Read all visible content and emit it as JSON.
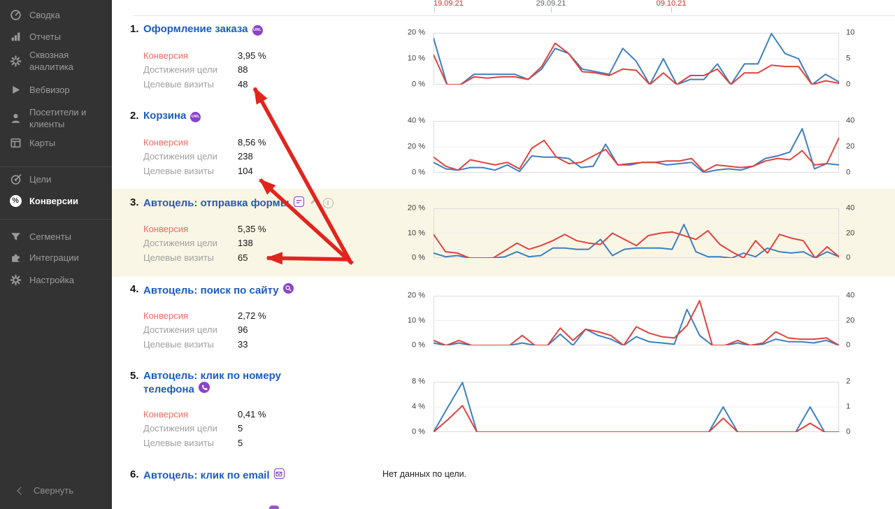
{
  "sidebar": {
    "items": [
      {
        "label": "Сводка",
        "icon": "gauge"
      },
      {
        "label": "Отчеты",
        "icon": "bar-chart"
      },
      {
        "label": "Сквозная аналитика",
        "icon": "burst"
      },
      {
        "label": "Вебвизор",
        "icon": "play"
      },
      {
        "label": "Посетители и клиенты",
        "icon": "person"
      },
      {
        "label": "Карты",
        "icon": "window"
      },
      {
        "label": "Цели",
        "icon": "target"
      },
      {
        "label": "Конверсии",
        "icon": "percent",
        "active": true
      },
      {
        "label": "Сегменты",
        "icon": "funnel"
      },
      {
        "label": "Интеграции",
        "icon": "puzzle"
      },
      {
        "label": "Настройка",
        "icon": "gear"
      }
    ],
    "collapse_label": "Свернуть"
  },
  "timeline": {
    "dates": [
      {
        "label": "19.09.21",
        "highlight": true
      },
      {
        "label": "29.09.21",
        "highlight": false
      },
      {
        "label": "09.10.21",
        "highlight": true
      }
    ],
    "highlight_color": "#c9302c",
    "normal_color": "#5f6368"
  },
  "metric_labels": {
    "conversion": "Конверсия",
    "reaches": "Достижения цели",
    "visits": "Целевые визиты"
  },
  "goals": [
    {
      "num": "1.",
      "title": "Оформление заказа",
      "badge_label": "URL",
      "conversion": "3,95 %",
      "reaches": "88",
      "visits": "48",
      "chart_data": {
        "type": "line",
        "ylim_left": [
          0,
          20
        ],
        "left_ticks": [
          "20 %",
          "10 %",
          "0 %"
        ],
        "right_ticks": [
          "10",
          "5",
          "0"
        ],
        "series": [
          {
            "name": "Достижения цели",
            "color": "#3d7fc0",
            "values": [
              18,
              0,
              0,
              4,
              4,
              4,
              4,
              2,
              6,
              14,
              12,
              6,
              5,
              4,
              14,
              9,
              0,
              10,
              0,
              2,
              2,
              8,
              0,
              8,
              8,
              20,
              12,
              10,
              0,
              4,
              1
            ]
          },
          {
            "name": "Конверсия",
            "color": "#e0433c",
            "values": [
              11.5,
              0,
              0,
              3,
              2.5,
              3,
              3,
              2,
              7,
              16,
              12,
              5,
              4.5,
              3.5,
              6,
              5.5,
              0,
              4.5,
              0,
              3.5,
              3.5,
              6,
              0,
              4.5,
              4.5,
              7.5,
              7,
              7,
              0,
              1.5,
              0.5
            ]
          }
        ]
      }
    },
    {
      "num": "2.",
      "title": "Корзина",
      "badge_label": "URL",
      "conversion": "8,56 %",
      "reaches": "238",
      "visits": "104",
      "chart_data": {
        "type": "line",
        "ylim_left": [
          0,
          40
        ],
        "left_ticks": [
          "40 %",
          "20 %",
          "0 %"
        ],
        "right_ticks": [
          "40",
          "20",
          "0"
        ],
        "series": [
          {
            "name": "Достижения цели",
            "color": "#3d7fc0",
            "values": [
              8,
              3,
              2,
              4,
              4,
              2,
              6,
              1,
              13,
              12,
              12,
              11,
              4,
              5,
              22,
              6,
              6,
              8,
              8,
              6,
              7,
              8,
              0,
              2,
              3,
              2,
              5,
              11,
              13,
              16,
              34,
              3,
              7,
              6
            ]
          },
          {
            "name": "Конверсия",
            "color": "#e0433c",
            "values": [
              12,
              5,
              2,
              10,
              8,
              6,
              8,
              3,
              19,
              25,
              12,
              7,
              8,
              13,
              18,
              6,
              7,
              8,
              8,
              9,
              9,
              11,
              1,
              6,
              5,
              4,
              5,
              9,
              11,
              10,
              17,
              6,
              7,
              27
            ]
          }
        ]
      }
    },
    {
      "num": "3.",
      "title": "Автоцель: отправка формы",
      "conversion": "5,35 %",
      "reaches": "138",
      "visits": "65",
      "chart_data": {
        "type": "line",
        "ylim_left": [
          0,
          20
        ],
        "left_ticks": [
          "20 %",
          "10 %",
          "0 %"
        ],
        "right_ticks": [
          "40",
          "20",
          "0"
        ],
        "series": [
          {
            "name": "Достижения цели",
            "color": "#3d7fc0",
            "values": [
              2,
              0.5,
              1,
              0,
              0,
              0,
              0.5,
              2.5,
              0.5,
              1,
              4,
              4,
              3.5,
              3.5,
              7.5,
              1,
              3.5,
              4,
              4,
              4,
              3.5,
              13.5,
              2.5,
              0.5,
              0.5,
              0,
              2,
              0.5,
              4,
              2.5,
              2,
              2.5,
              0,
              2.5,
              0.5
            ]
          },
          {
            "name": "Конверсия",
            "color": "#e0433c",
            "values": [
              9.5,
              2.5,
              2,
              0,
              0,
              0,
              3,
              6,
              3.5,
              5,
              7,
              9.5,
              7,
              6,
              5.5,
              10,
              7.5,
              5,
              9,
              10,
              10.5,
              9,
              7.5,
              11,
              5.5,
              2.5,
              0,
              7,
              2,
              9.5,
              8,
              7,
              0,
              4.5,
              0.5
            ]
          }
        ]
      }
    },
    {
      "num": "4.",
      "title": "Автоцель: поиск по сайту",
      "conversion": "2,72 %",
      "reaches": "96",
      "visits": "33",
      "chart_data": {
        "type": "line",
        "ylim_left": [
          0,
          20
        ],
        "left_ticks": [
          "20 %",
          "10 %",
          "0 %"
        ],
        "right_ticks": [
          "40",
          "20",
          "0"
        ],
        "series": [
          {
            "name": "Достижения цели",
            "color": "#3d7fc0",
            "values": [
              1,
              0,
              1,
              0,
              0,
              0,
              0,
              1,
              0,
              0,
              4.5,
              0,
              6.5,
              4,
              2.5,
              0,
              3.5,
              1.5,
              1,
              0.5,
              14.5,
              4,
              0,
              0,
              1,
              0,
              0.5,
              2.5,
              1.5,
              1.5,
              1,
              2,
              0
            ]
          },
          {
            "name": "Конверсия",
            "color": "#e0433c",
            "values": [
              2,
              0,
              2,
              0,
              0,
              0,
              0,
              4,
              0,
              0,
              7,
              2,
              6.5,
              5.5,
              4,
              0,
              7.5,
              5,
              3.5,
              3,
              8,
              18,
              0,
              0,
              2,
              0,
              1,
              5.5,
              3,
              2.5,
              2.5,
              3,
              0
            ]
          }
        ]
      }
    },
    {
      "num": "5.",
      "title": "Автоцель: клик по номеру телефона",
      "conversion": "0,41 %",
      "reaches": "5",
      "visits": "5",
      "chart_data": {
        "type": "line",
        "ylim_left": [
          0,
          8
        ],
        "left_ticks": [
          "8 %",
          "4 %",
          "0 %"
        ],
        "right_ticks": [
          "2",
          "1",
          "0"
        ],
        "series": [
          {
            "name": "Достижения цели",
            "color": "#3d7fc0",
            "values": [
              0,
              4,
              8,
              0,
              0,
              0,
              0,
              0,
              0,
              0,
              0,
              0,
              0,
              0,
              0,
              0,
              0,
              0,
              0,
              0,
              4,
              0,
              0,
              0,
              0,
              0,
              4,
              0,
              0
            ]
          },
          {
            "name": "Конверсия",
            "color": "#e0433c",
            "values": [
              0,
              2,
              4.2,
              0,
              0,
              0,
              0,
              0,
              0,
              0,
              0,
              0,
              0,
              0,
              0,
              0,
              0,
              0,
              0,
              0,
              2.2,
              0,
              0,
              0,
              0,
              0,
              1.4,
              0,
              0
            ]
          }
        ]
      }
    },
    {
      "num": "6.",
      "title": "Автоцель: клик по email",
      "no_data": "Нет данных по цели."
    }
  ],
  "annotations": {
    "arrow_color": "#e2241c",
    "arrows": [
      {
        "from": [
          502,
          376
        ],
        "to": [
          364,
          126
        ]
      },
      {
        "from": [
          504,
          377
        ],
        "to": [
          372,
          257
        ]
      },
      {
        "from": [
          500,
          371
        ],
        "to": [
          382,
          369
        ]
      }
    ]
  }
}
